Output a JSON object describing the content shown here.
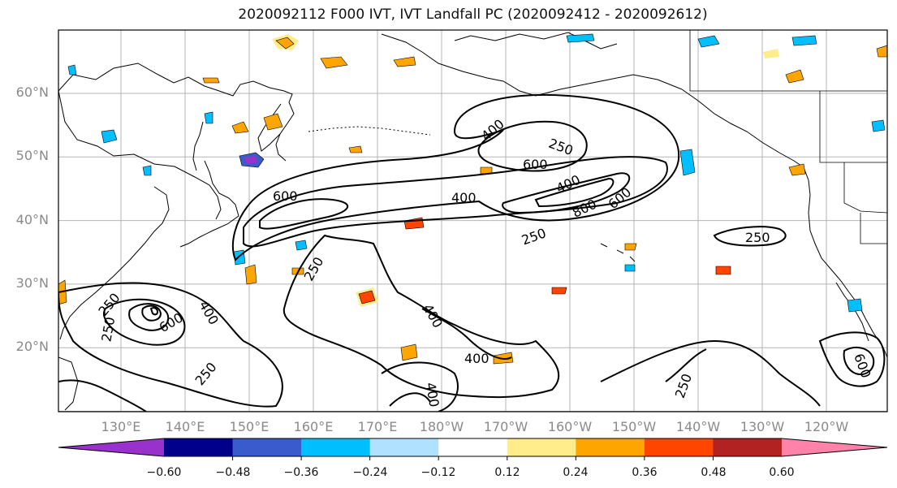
{
  "title": "2020092112 F000 IVT, IVT Landfall PC (2020092412 - 2020092612)",
  "lat_labels": [
    "60°N",
    "50°N",
    "40°N",
    "30°N",
    "20°N"
  ],
  "lon_labels": [
    "130°E",
    "140°E",
    "150°E",
    "160°E",
    "170°E",
    "180°W",
    "170°W",
    "160°W",
    "150°W",
    "140°W",
    "130°W",
    "120°W"
  ],
  "colorbar": {
    "colors": [
      "#9932cc",
      "#00008b",
      "#3a5bcc",
      "#00bfff",
      "#b0e2ff",
      "#ffffff",
      "#ffec8b",
      "#ffa500",
      "#ff4500",
      "#b22222",
      "#ff82ab"
    ],
    "ticks": [
      "−0.60",
      "−0.48",
      "−0.36",
      "−0.24",
      "−0.12",
      "0.12",
      "0.24",
      "0.36",
      "0.48",
      "0.60"
    ]
  },
  "contour_labels": [
    "400",
    "250",
    "600",
    "400",
    "400",
    "600",
    "800",
    "600",
    "250",
    "250",
    "250",
    "600",
    "400",
    "250",
    "250",
    "400",
    "400",
    "250",
    "400",
    "250",
    "600"
  ]
}
